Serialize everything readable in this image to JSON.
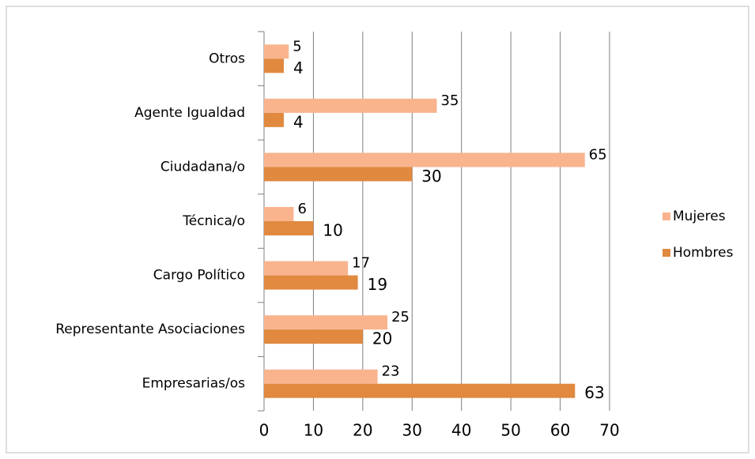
{
  "chart_data": {
    "type": "bar",
    "orientation": "horizontal",
    "categories": [
      "Otros",
      "Agente Igualdad",
      "Ciudadana/o",
      "Técnica/o",
      "Cargo Político",
      "Representante Asociaciones",
      "Empresarias/os"
    ],
    "series": [
      {
        "name": "Mujeres",
        "color": "#f9b48e",
        "values": [
          5,
          35,
          65,
          6,
          17,
          25,
          23
        ]
      },
      {
        "name": "Hombres",
        "color": "#e0893f",
        "values": [
          4,
          4,
          30,
          10,
          19,
          20,
          63
        ]
      }
    ],
    "xlim": [
      0,
      70
    ],
    "xticks": [
      0,
      10,
      20,
      30,
      40,
      50,
      60,
      70
    ],
    "grid": true,
    "legend": "right"
  }
}
